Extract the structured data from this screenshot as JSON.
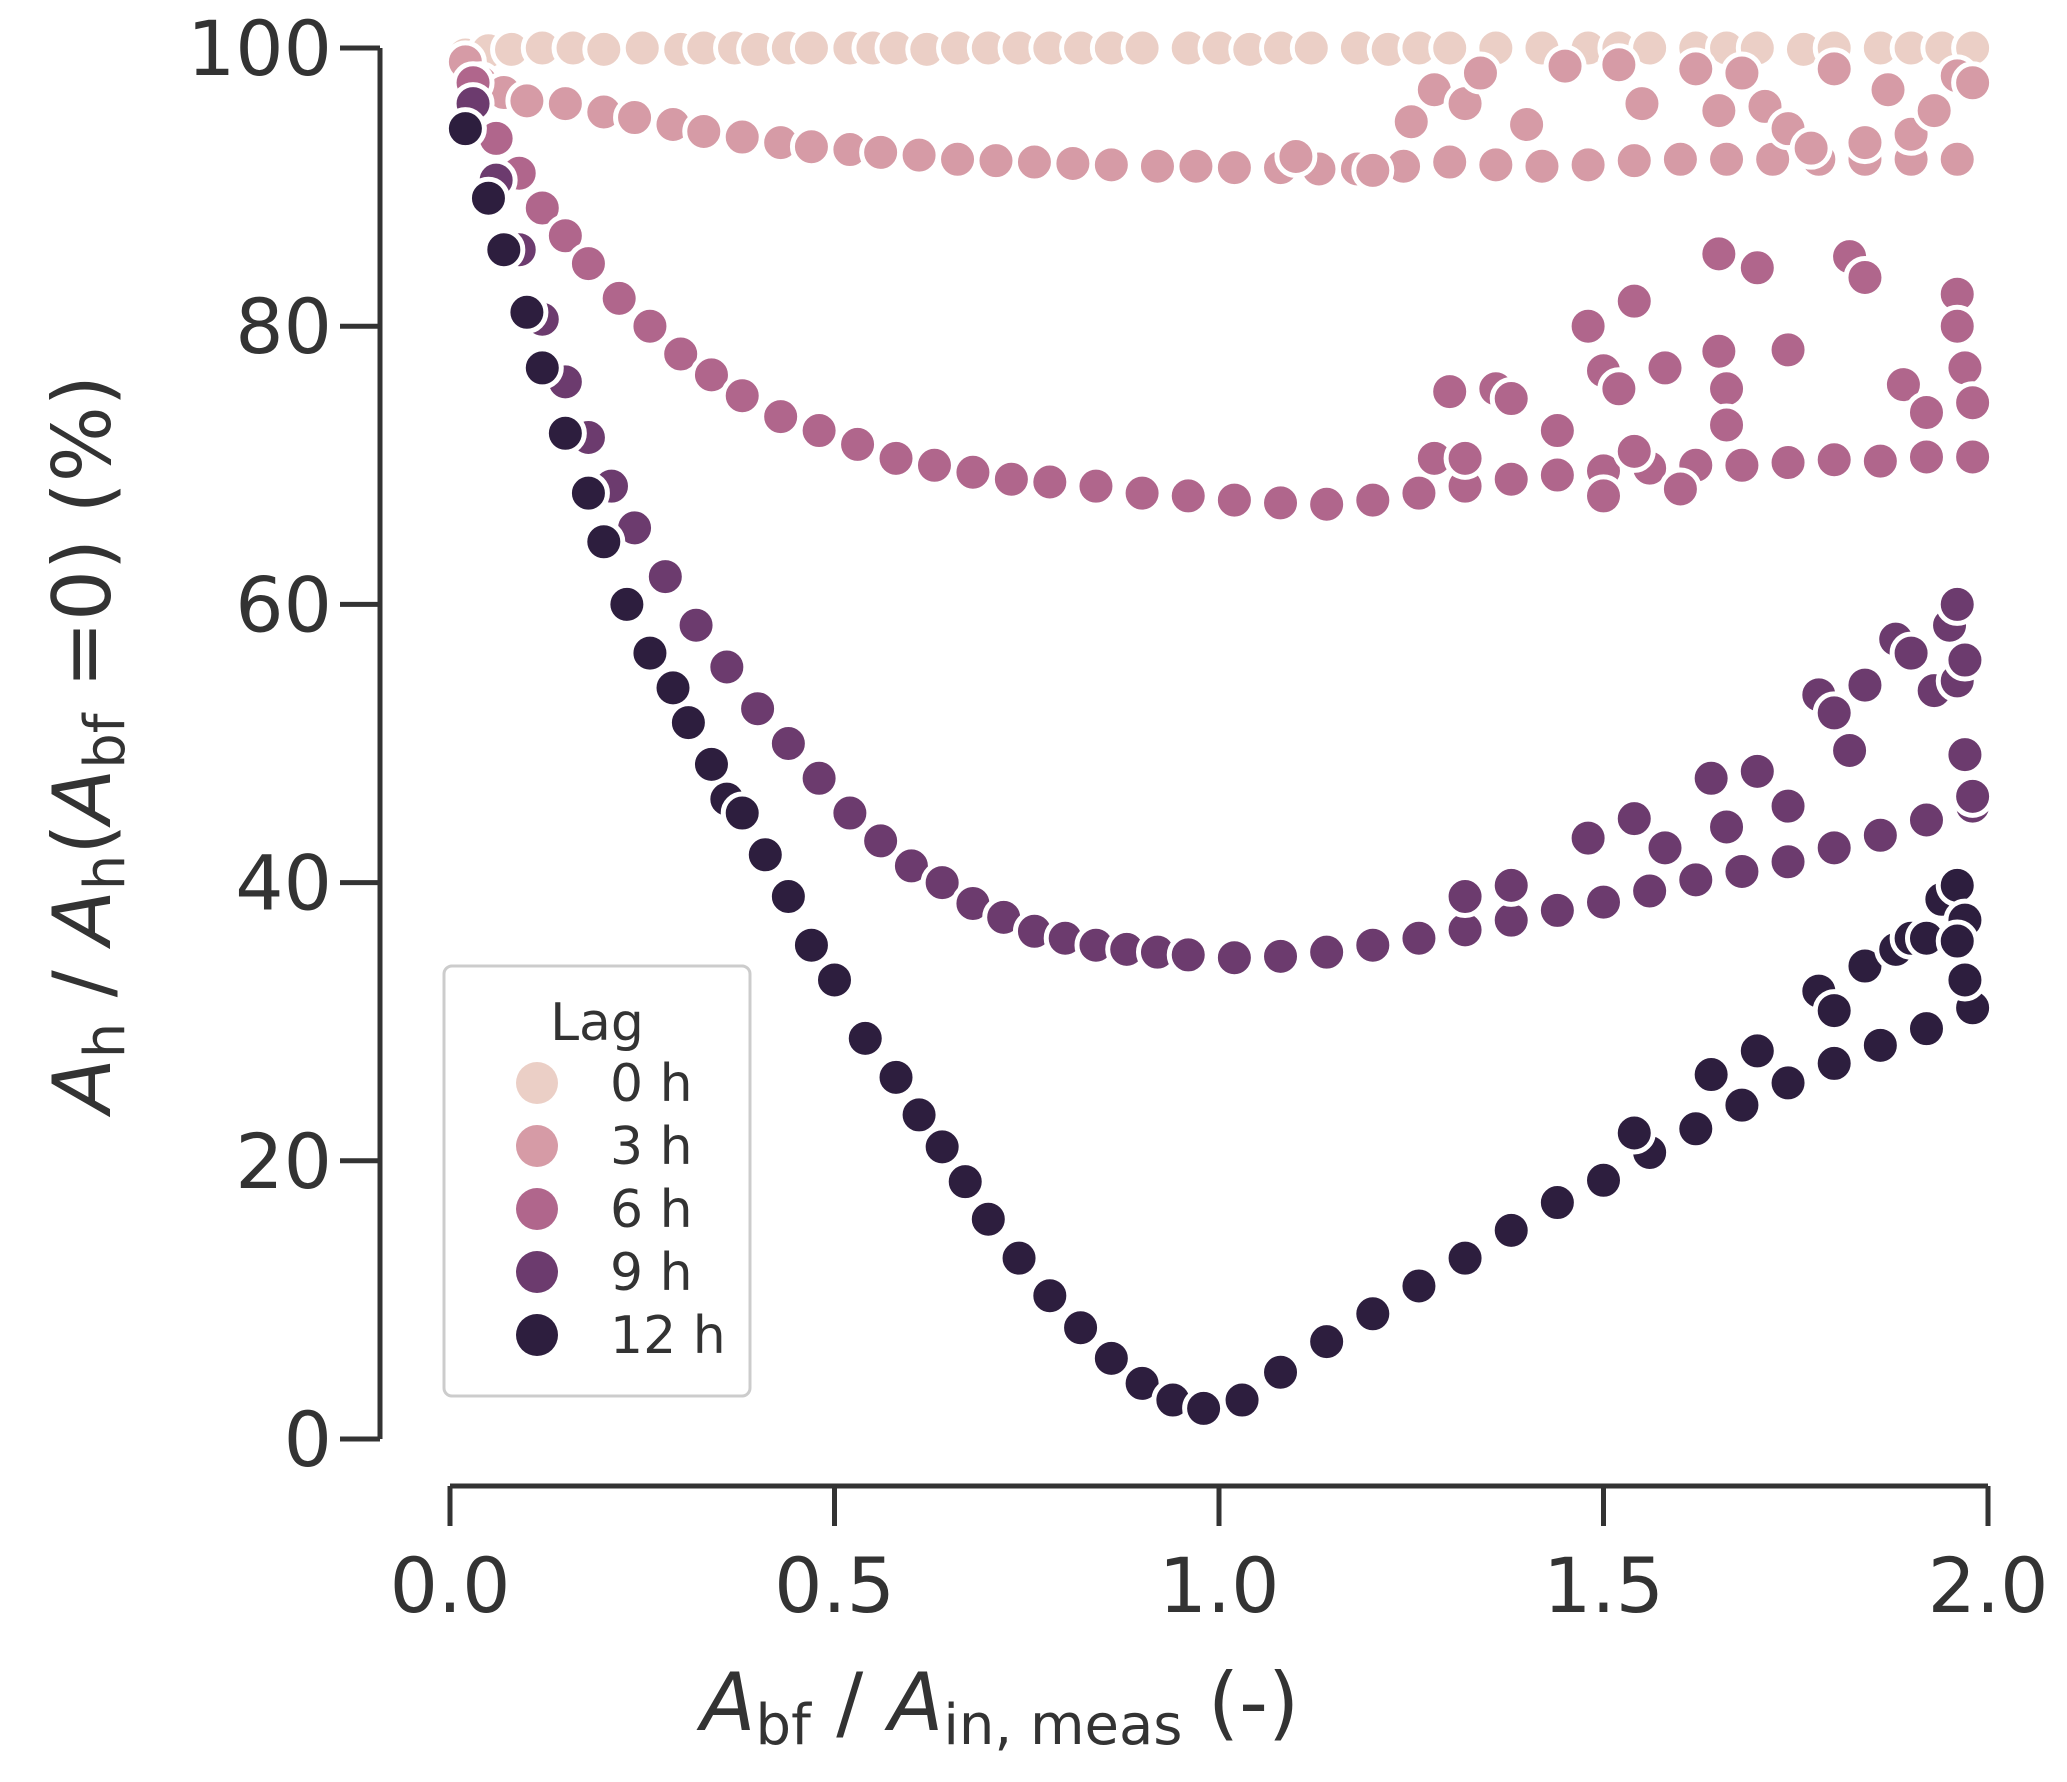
{
  "chart_data": {
    "type": "scatter",
    "xlabel": {
      "main": "A",
      "sub": "bf",
      "sep": " / ",
      "main2": "A",
      "sub2": "in, meas",
      "unit": " (-)"
    },
    "ylabel": {
      "m1": "A",
      "s1": "h",
      "sep": " / ",
      "m2": "A",
      "s2": "h",
      "open": "(",
      "m3": "A",
      "s3": "bf",
      "eq": " =0)",
      "unit": " (%)"
    },
    "xlim": [
      0.0,
      2.0
    ],
    "ylim": [
      0,
      100
    ],
    "xticks": [
      0.0,
      0.5,
      1.0,
      1.5,
      2.0
    ],
    "xtick_labels": [
      "0.0",
      "0.5",
      "1.0",
      "1.5",
      "2.0"
    ],
    "yticks": [
      0,
      20,
      40,
      60,
      80,
      100
    ],
    "ytick_labels": [
      "0",
      "20",
      "40",
      "60",
      "80",
      "100"
    ],
    "legend": {
      "title": "Lag",
      "location": "lower-left"
    },
    "series": [
      {
        "name": "0 h",
        "color": "#ebcfc6",
        "points": [
          [
            0.02,
            99.5
          ],
          [
            0.05,
            99.8
          ],
          [
            0.08,
            99.9
          ],
          [
            0.12,
            100
          ],
          [
            0.16,
            100
          ],
          [
            0.2,
            99.9
          ],
          [
            0.25,
            100
          ],
          [
            0.3,
            99.9
          ],
          [
            0.33,
            100
          ],
          [
            0.37,
            100
          ],
          [
            0.4,
            99.9
          ],
          [
            0.44,
            100
          ],
          [
            0.47,
            100
          ],
          [
            0.52,
            100
          ],
          [
            0.55,
            100
          ],
          [
            0.58,
            100
          ],
          [
            0.62,
            99.9
          ],
          [
            0.66,
            100
          ],
          [
            0.7,
            100
          ],
          [
            0.74,
            100
          ],
          [
            0.78,
            100
          ],
          [
            0.82,
            100
          ],
          [
            0.86,
            100
          ],
          [
            0.9,
            100
          ],
          [
            0.96,
            100
          ],
          [
            1.0,
            100
          ],
          [
            1.04,
            99.9
          ],
          [
            1.08,
            100
          ],
          [
            1.12,
            100
          ],
          [
            1.18,
            100
          ],
          [
            1.22,
            99.9
          ],
          [
            1.26,
            100
          ],
          [
            1.3,
            100
          ],
          [
            1.36,
            100
          ],
          [
            1.42,
            100
          ],
          [
            1.48,
            100
          ],
          [
            1.52,
            100
          ],
          [
            1.56,
            100
          ],
          [
            1.62,
            100
          ],
          [
            1.66,
            100
          ],
          [
            1.7,
            100
          ],
          [
            1.76,
            99.9
          ],
          [
            1.8,
            100
          ],
          [
            1.86,
            100
          ],
          [
            1.9,
            100
          ],
          [
            1.94,
            100
          ],
          [
            1.98,
            100
          ]
        ]
      },
      {
        "name": "3 h",
        "color": "#d69ba6",
        "points": [
          [
            0.02,
            99
          ],
          [
            0.04,
            97.5
          ],
          [
            0.07,
            96.8
          ],
          [
            0.1,
            96.2
          ],
          [
            0.15,
            96
          ],
          [
            0.2,
            95.4
          ],
          [
            0.24,
            95
          ],
          [
            0.29,
            94.5
          ],
          [
            0.33,
            94
          ],
          [
            0.38,
            93.6
          ],
          [
            0.43,
            93.2
          ],
          [
            0.47,
            92.9
          ],
          [
            0.52,
            92.7
          ],
          [
            0.56,
            92.5
          ],
          [
            0.61,
            92.3
          ],
          [
            0.66,
            92
          ],
          [
            0.71,
            91.9
          ],
          [
            0.76,
            91.8
          ],
          [
            0.81,
            91.7
          ],
          [
            0.86,
            91.6
          ],
          [
            0.92,
            91.5
          ],
          [
            0.97,
            91.5
          ],
          [
            1.02,
            91.4
          ],
          [
            1.08,
            91.4
          ],
          [
            1.13,
            91.3
          ],
          [
            1.18,
            91.3
          ],
          [
            1.24,
            91.5
          ],
          [
            1.3,
            91.8
          ],
          [
            1.36,
            91.6
          ],
          [
            1.42,
            91.5
          ],
          [
            1.48,
            91.6
          ],
          [
            1.54,
            91.9
          ],
          [
            1.6,
            92
          ],
          [
            1.66,
            92
          ],
          [
            1.72,
            92
          ],
          [
            1.78,
            92
          ],
          [
            1.84,
            92
          ],
          [
            1.9,
            92
          ],
          [
            1.96,
            92
          ],
          [
            1.25,
            94.7
          ],
          [
            1.28,
            97
          ],
          [
            1.32,
            96
          ],
          [
            1.34,
            98.2
          ],
          [
            1.4,
            94.5
          ],
          [
            1.45,
            98.7
          ],
          [
            1.52,
            98.8
          ],
          [
            1.55,
            96
          ],
          [
            1.62,
            98.5
          ],
          [
            1.65,
            95.5
          ],
          [
            1.68,
            98.2
          ],
          [
            1.71,
            95.8
          ],
          [
            1.74,
            94.2
          ],
          [
            1.77,
            92.8
          ],
          [
            1.8,
            98.5
          ],
          [
            1.84,
            93.2
          ],
          [
            1.87,
            97
          ],
          [
            1.9,
            93.8
          ],
          [
            1.93,
            95.5
          ],
          [
            1.96,
            98
          ],
          [
            1.98,
            97.5
          ],
          [
            1.2,
            91.2
          ],
          [
            1.1,
            92.2
          ]
        ]
      },
      {
        "name": "6 h",
        "color": "#b0668c",
        "points": [
          [
            0.03,
            97.5
          ],
          [
            0.06,
            93.5
          ],
          [
            0.09,
            91
          ],
          [
            0.12,
            88.5
          ],
          [
            0.15,
            86.5
          ],
          [
            0.18,
            84.5
          ],
          [
            0.22,
            82
          ],
          [
            0.26,
            80
          ],
          [
            0.3,
            78
          ],
          [
            0.34,
            76.5
          ],
          [
            0.38,
            75
          ],
          [
            0.43,
            73.5
          ],
          [
            0.48,
            72.5
          ],
          [
            0.53,
            71.5
          ],
          [
            0.58,
            70.5
          ],
          [
            0.63,
            70
          ],
          [
            0.68,
            69.5
          ],
          [
            0.73,
            69
          ],
          [
            0.78,
            68.8
          ],
          [
            0.84,
            68.5
          ],
          [
            0.9,
            68
          ],
          [
            0.96,
            67.8
          ],
          [
            1.02,
            67.5
          ],
          [
            1.08,
            67.3
          ],
          [
            1.14,
            67.2
          ],
          [
            1.2,
            67.5
          ],
          [
            1.26,
            68
          ],
          [
            1.32,
            68.5
          ],
          [
            1.38,
            69
          ],
          [
            1.44,
            69.3
          ],
          [
            1.5,
            69.6
          ],
          [
            1.56,
            69.8
          ],
          [
            1.62,
            70
          ],
          [
            1.68,
            70
          ],
          [
            1.74,
            70.2
          ],
          [
            1.8,
            70.4
          ],
          [
            1.86,
            70.6
          ],
          [
            1.92,
            70.6
          ],
          [
            1.98,
            70.6
          ],
          [
            1.3,
            75.3
          ],
          [
            1.36,
            75.5
          ],
          [
            1.38,
            74.8
          ],
          [
            1.44,
            72.5
          ],
          [
            1.48,
            80
          ],
          [
            1.5,
            76.8
          ],
          [
            1.52,
            75.5
          ],
          [
            1.54,
            81.8
          ],
          [
            1.58,
            77
          ],
          [
            1.65,
            85.2
          ],
          [
            1.65,
            78.2
          ],
          [
            1.66,
            75.5
          ],
          [
            1.7,
            84.2
          ],
          [
            1.74,
            78.3
          ],
          [
            1.82,
            85
          ],
          [
            1.84,
            83.5
          ],
          [
            1.86,
            70.3
          ],
          [
            1.89,
            75.8
          ],
          [
            1.92,
            73.8
          ],
          [
            1.96,
            82.3
          ],
          [
            1.96,
            80
          ],
          [
            1.97,
            77
          ],
          [
            1.98,
            74.5
          ],
          [
            1.28,
            70.5
          ],
          [
            1.32,
            70.5
          ],
          [
            1.5,
            67.8
          ],
          [
            1.54,
            71
          ],
          [
            1.6,
            68.3
          ],
          [
            1.66,
            72.9
          ]
        ]
      },
      {
        "name": "9 h",
        "color": "#6c3b6e",
        "points": [
          [
            0.03,
            96
          ],
          [
            0.06,
            90.5
          ],
          [
            0.09,
            85.5
          ],
          [
            0.12,
            80.5
          ],
          [
            0.15,
            76
          ],
          [
            0.18,
            72
          ],
          [
            0.21,
            68.5
          ],
          [
            0.24,
            65.5
          ],
          [
            0.28,
            62
          ],
          [
            0.32,
            58.5
          ],
          [
            0.36,
            55.5
          ],
          [
            0.4,
            52.5
          ],
          [
            0.44,
            50
          ],
          [
            0.48,
            47.5
          ],
          [
            0.52,
            45
          ],
          [
            0.56,
            43
          ],
          [
            0.6,
            41.2
          ],
          [
            0.64,
            40
          ],
          [
            0.68,
            38.5
          ],
          [
            0.72,
            37.5
          ],
          [
            0.76,
            36.5
          ],
          [
            0.8,
            36
          ],
          [
            0.84,
            35.5
          ],
          [
            0.88,
            35.2
          ],
          [
            0.92,
            35
          ],
          [
            0.96,
            34.8
          ],
          [
            1.02,
            34.6
          ],
          [
            1.08,
            34.7
          ],
          [
            1.14,
            35
          ],
          [
            1.2,
            35.5
          ],
          [
            1.26,
            36
          ],
          [
            1.32,
            36.6
          ],
          [
            1.38,
            37.3
          ],
          [
            1.44,
            38
          ],
          [
            1.5,
            38.6
          ],
          [
            1.56,
            39.4
          ],
          [
            1.62,
            40.2
          ],
          [
            1.68,
            40.8
          ],
          [
            1.74,
            41.5
          ],
          [
            1.8,
            42.5
          ],
          [
            1.86,
            43.4
          ],
          [
            1.92,
            44.5
          ],
          [
            1.98,
            45.5
          ],
          [
            1.32,
            39
          ],
          [
            1.38,
            39.8
          ],
          [
            1.48,
            43.2
          ],
          [
            1.54,
            44.6
          ],
          [
            1.58,
            42.5
          ],
          [
            1.64,
            47.5
          ],
          [
            1.66,
            44
          ],
          [
            1.7,
            48
          ],
          [
            1.74,
            45.5
          ],
          [
            1.78,
            53.5
          ],
          [
            1.8,
            52.2
          ],
          [
            1.82,
            49.5
          ],
          [
            1.84,
            54.2
          ],
          [
            1.88,
            57.5
          ],
          [
            1.9,
            56.5
          ],
          [
            1.93,
            53.8
          ],
          [
            1.95,
            58.5
          ],
          [
            1.96,
            60
          ],
          [
            1.96,
            54.5
          ],
          [
            1.97,
            49.2
          ],
          [
            1.98,
            46.2
          ],
          [
            1.97,
            56
          ]
        ]
      },
      {
        "name": "12 h",
        "color": "#2d1e3e",
        "points": [
          [
            0.02,
            94.2
          ],
          [
            0.05,
            89.2
          ],
          [
            0.07,
            85.5
          ],
          [
            0.1,
            81
          ],
          [
            0.12,
            77
          ],
          [
            0.15,
            72.3
          ],
          [
            0.18,
            68
          ],
          [
            0.2,
            64.5
          ],
          [
            0.23,
            60
          ],
          [
            0.26,
            56.5
          ],
          [
            0.29,
            54
          ],
          [
            0.31,
            51.5
          ],
          [
            0.34,
            48.5
          ],
          [
            0.36,
            46
          ],
          [
            0.38,
            45
          ],
          [
            0.41,
            42
          ],
          [
            0.44,
            39
          ],
          [
            0.47,
            35.5
          ],
          [
            0.5,
            33
          ],
          [
            0.54,
            28.8
          ],
          [
            0.58,
            26
          ],
          [
            0.61,
            23.3
          ],
          [
            0.64,
            21
          ],
          [
            0.67,
            18.5
          ],
          [
            0.7,
            15.8
          ],
          [
            0.74,
            13
          ],
          [
            0.78,
            10.3
          ],
          [
            0.82,
            8
          ],
          [
            0.86,
            5.8
          ],
          [
            0.9,
            4
          ],
          [
            0.94,
            2.8
          ],
          [
            0.98,
            2.2
          ],
          [
            1.03,
            2.8
          ],
          [
            1.08,
            4.8
          ],
          [
            1.14,
            7
          ],
          [
            1.2,
            9
          ],
          [
            1.26,
            11
          ],
          [
            1.32,
            13
          ],
          [
            1.38,
            15
          ],
          [
            1.44,
            17
          ],
          [
            1.5,
            18.6
          ],
          [
            1.56,
            20.6
          ],
          [
            1.62,
            22.3
          ],
          [
            1.68,
            24
          ],
          [
            1.74,
            25.6
          ],
          [
            1.8,
            27
          ],
          [
            1.86,
            28.3
          ],
          [
            1.92,
            29.5
          ],
          [
            1.98,
            31
          ],
          [
            1.78,
            32.2
          ],
          [
            1.8,
            30.8
          ],
          [
            1.84,
            34
          ],
          [
            1.88,
            35.2
          ],
          [
            1.9,
            36
          ],
          [
            1.92,
            36
          ],
          [
            1.94,
            38.8
          ],
          [
            1.96,
            39.8
          ],
          [
            1.97,
            37.3
          ],
          [
            1.96,
            35.8
          ],
          [
            1.97,
            33
          ],
          [
            1.7,
            27.9
          ],
          [
            1.64,
            26.2
          ],
          [
            1.54,
            22
          ]
        ]
      }
    ]
  }
}
